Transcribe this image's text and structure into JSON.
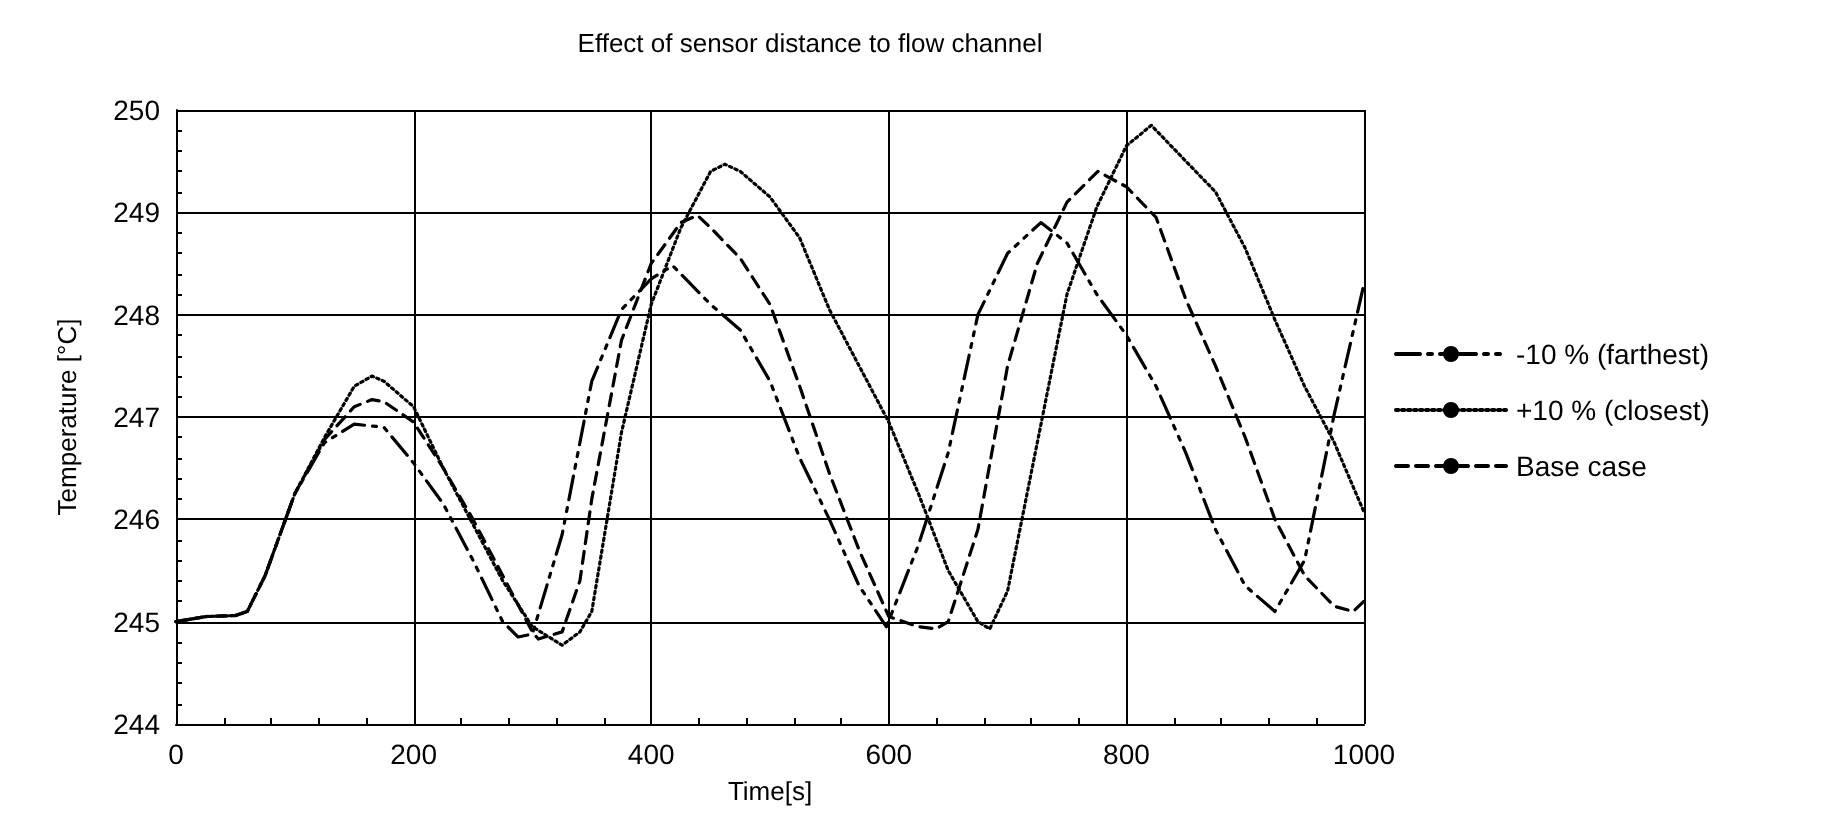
{
  "chart_data": {
    "type": "line",
    "title": "Effect of sensor distance to flow channel",
    "xlabel": "Time[s]",
    "ylabel": "Temperature [°C]",
    "xlim": [
      0,
      1000
    ],
    "xticks": [
      0,
      200,
      400,
      600,
      800,
      1000
    ],
    "ylim": [
      244,
      250
    ],
    "yticks": [
      244,
      245,
      246,
      247,
      248,
      249,
      250
    ],
    "grid": true,
    "legend": "right",
    "marker": "none",
    "series": [
      {
        "name": "-10 % (farthest)",
        "color": "#000000",
        "line_style": "dashdot",
        "x": [
          0,
          25,
          50,
          60,
          75,
          100,
          125,
          150,
          175,
          200,
          225,
          250,
          275,
          288,
          300,
          325,
          350,
          375,
          400,
          418,
          450,
          475,
          500,
          525,
          550,
          575,
          598,
          625,
          650,
          675,
          700,
          728,
          750,
          775,
          800,
          825,
          850,
          875,
          900,
          925,
          950,
          975,
          1000
        ],
        "values": [
          245.0,
          245.05,
          245.06,
          245.1,
          245.45,
          246.25,
          246.75,
          246.93,
          246.9,
          246.55,
          246.15,
          245.6,
          245.0,
          244.85,
          244.88,
          245.85,
          247.35,
          248.05,
          248.35,
          248.48,
          248.1,
          247.85,
          247.35,
          246.6,
          246.0,
          245.35,
          244.95,
          245.75,
          246.65,
          248.0,
          248.6,
          248.9,
          248.7,
          248.2,
          247.8,
          247.3,
          246.65,
          245.9,
          245.35,
          245.1,
          245.6,
          247.03,
          248.3
        ]
      },
      {
        "name": "+10 % (closest)",
        "color": "#000000",
        "line_style": "dotted",
        "x": [
          0,
          25,
          50,
          60,
          75,
          100,
          125,
          150,
          165,
          175,
          200,
          225,
          250,
          275,
          300,
          325,
          340,
          350,
          375,
          400,
          425,
          450,
          462,
          475,
          500,
          525,
          550,
          575,
          600,
          625,
          650,
          675,
          685,
          700,
          725,
          750,
          775,
          800,
          821,
          850,
          875,
          900,
          925,
          950,
          975,
          1000
        ],
        "values": [
          245.0,
          245.05,
          245.06,
          245.1,
          245.45,
          246.25,
          246.8,
          247.3,
          247.4,
          247.35,
          247.1,
          246.5,
          245.95,
          245.4,
          244.95,
          244.77,
          244.9,
          245.1,
          246.85,
          248.1,
          248.85,
          249.4,
          249.47,
          249.4,
          249.15,
          248.75,
          248.05,
          247.5,
          246.95,
          246.25,
          245.5,
          245.0,
          244.93,
          245.3,
          246.75,
          248.2,
          249.05,
          249.65,
          249.85,
          249.5,
          249.2,
          248.65,
          247.95,
          247.3,
          246.75,
          246.07
        ]
      },
      {
        "name": "Base case",
        "color": "#000000",
        "line_style": "dashed",
        "x": [
          0,
          25,
          50,
          60,
          75,
          100,
          125,
          150,
          165,
          175,
          200,
          225,
          250,
          275,
          300,
          305,
          325,
          340,
          350,
          375,
          400,
          425,
          439,
          450,
          475,
          500,
          525,
          550,
          575,
          600,
          625,
          640,
          650,
          675,
          700,
          725,
          750,
          776,
          800,
          825,
          850,
          875,
          900,
          925,
          950,
          975,
          991,
          1000
        ],
        "values": [
          245.0,
          245.05,
          245.06,
          245.1,
          245.45,
          246.25,
          246.78,
          247.1,
          247.17,
          247.15,
          246.95,
          246.5,
          246.0,
          245.45,
          244.9,
          244.83,
          244.9,
          245.4,
          246.2,
          247.75,
          248.5,
          248.9,
          248.97,
          248.85,
          248.55,
          248.1,
          247.3,
          246.45,
          245.7,
          245.05,
          244.95,
          244.93,
          245.0,
          245.9,
          247.5,
          248.5,
          249.1,
          249.4,
          249.25,
          248.95,
          248.15,
          247.5,
          246.8,
          246.0,
          245.45,
          245.15,
          245.1,
          245.2
        ]
      }
    ]
  }
}
